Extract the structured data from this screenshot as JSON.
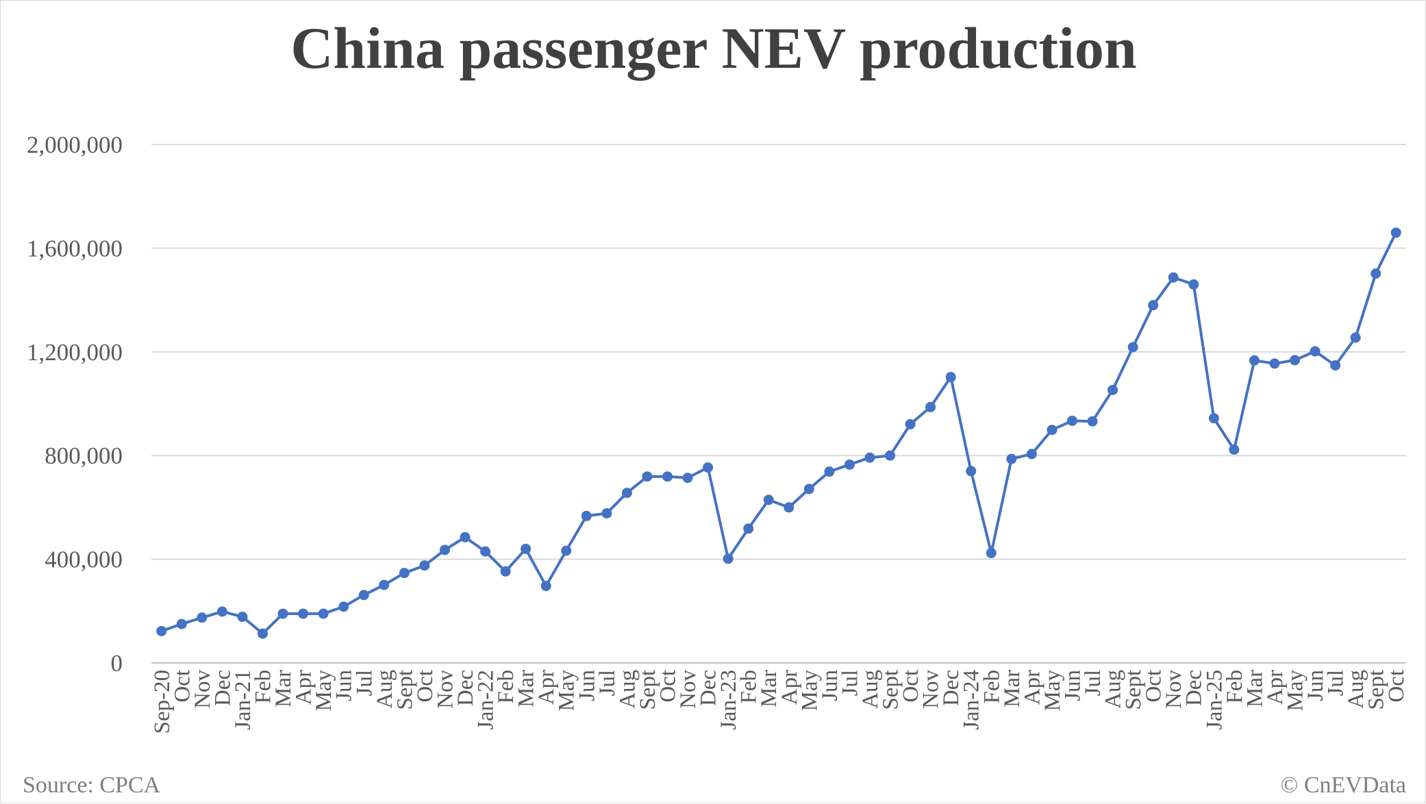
{
  "chart_data": {
    "type": "line",
    "title": "China passenger NEV production",
    "xlabel": "",
    "ylabel": "",
    "ylim": [
      0,
      2000000
    ],
    "yticks": [
      0,
      400000,
      800000,
      1200000,
      1600000,
      2000000
    ],
    "ytick_labels": [
      "0",
      "400,000",
      "800,000",
      "1,200,000",
      "1,600,000",
      "2,000,000"
    ],
    "grid": true,
    "legend": "none",
    "categories": [
      "Sep-20",
      "Oct",
      "Nov",
      "Dec",
      "Jan-21",
      "Feb",
      "Mar",
      "Apr",
      "May",
      "Jun",
      "Jul",
      "Aug",
      "Sept",
      "Oct",
      "Nov",
      "Dec",
      "Jan-22",
      "Feb",
      "Mar",
      "Apr",
      "May",
      "Jun",
      "Jul",
      "Aug",
      "Sept",
      "Oct",
      "Nov",
      "Dec",
      "Jan-23",
      "Feb",
      "Mar",
      "Apr",
      "May",
      "Jun",
      "Jul",
      "Aug",
      "Sept",
      "Oct",
      "Nov",
      "Dec",
      "Jan-24",
      "Feb",
      "Mar",
      "Apr",
      "May",
      "Jun",
      "Jul",
      "Aug",
      "Sept",
      "Oct",
      "Nov",
      "Dec",
      "Jan-25",
      "Feb",
      "Mar",
      "Apr",
      "May",
      "Jun",
      "Jul",
      "Aug",
      "Sept",
      "Oct"
    ],
    "series": [
      {
        "color": "#4472c4",
        "values": [
          123000,
          150000,
          175000,
          198000,
          178000,
          113000,
          190000,
          190000,
          190000,
          217000,
          262000,
          301000,
          347000,
          376000,
          436000,
          485000,
          430000,
          353000,
          440000,
          297000,
          433000,
          567000,
          577000,
          656000,
          719000,
          719000,
          714000,
          754000,
          402000,
          518000,
          629000,
          600000,
          671000,
          738000,
          765000,
          792000,
          800000,
          921000,
          987000,
          1103000,
          740000,
          424000,
          787000,
          806000,
          899000,
          934000,
          932000,
          1053000,
          1218000,
          1380000,
          1487000,
          1460000,
          944000,
          823000,
          1167000,
          1155000,
          1168000,
          1202000,
          1148000,
          1255000,
          1502000,
          1660000
        ]
      }
    ]
  },
  "footer": {
    "source": "Source: CPCA",
    "credit": "© CnEVData"
  }
}
